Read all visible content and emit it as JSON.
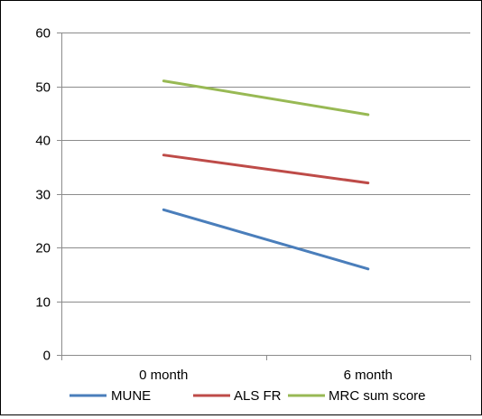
{
  "chart_data": {
    "type": "line",
    "categories": [
      "0 month",
      "6 month"
    ],
    "series": [
      {
        "name": "MUNE",
        "values": [
          27,
          16
        ],
        "color": "#4a7ebb"
      },
      {
        "name": "ALS FR",
        "values": [
          37.2,
          32
        ],
        "color": "#be4b48"
      },
      {
        "name": "MRC sum score",
        "values": [
          51,
          44.7
        ],
        "color": "#98b954"
      }
    ],
    "ylim": [
      0,
      60
    ],
    "yticks": [
      0,
      10,
      20,
      30,
      40,
      50,
      60
    ],
    "grid": true,
    "legend": "bottom",
    "title": "",
    "xlabel": "",
    "ylabel": ""
  }
}
